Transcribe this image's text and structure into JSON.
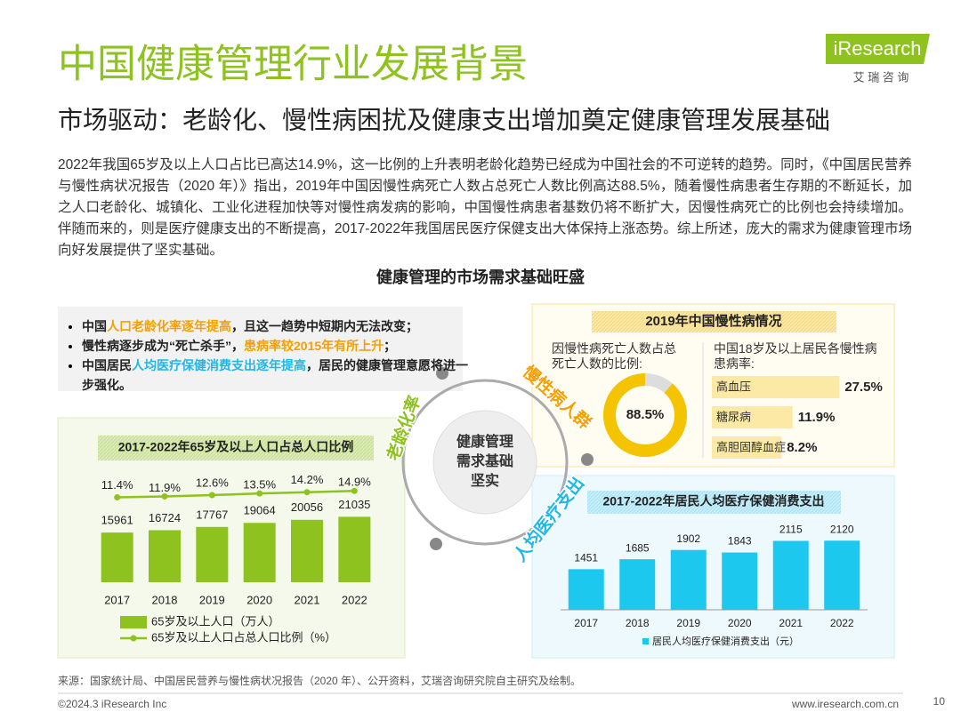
{
  "header": {
    "title": "中国健康管理行业发展背景",
    "subtitle": "市场驱动：老龄化、慢性病困扰及健康支出增加奠定健康管理发展基础",
    "logo": "iResearch",
    "logo_sub": "艾 瑞 咨 询"
  },
  "intro": "2022年我国65岁及以上人口占比已高达14.9%，这一比例的上升表明老龄化趋势已经成为中国社会的不可逆转的趋势。同时，《中国居民营养与慢性病状况报告（2020 年）》指出，2019年中国因慢性病死亡人数占总死亡人数比例高达88.5%，随着慢性病患者生存期的不断延长，加之人口老龄化、城镇化、工业化进程加快等对慢性病发病的影响，中国慢性病患者基数仍将不断扩大，因慢性病死亡的比例也会持续增加。伴随而来的，则是医疗健康支出的不断提高，2017-2022年我国居民医疗保健支出大体保持上涨态势。综上所述，庞大的需求为健康管理市场向好发展提供了坚实基础。",
  "section_title": "健康管理的市场需求基础旺盛",
  "bullets": [
    [
      {
        "text": "中国",
        "color": "#222222"
      },
      {
        "text": "人口老龄化率逐年提高",
        "color": "#f5a000"
      },
      {
        "text": "，且这一趋势中短期内无法改变；",
        "color": "#222222"
      }
    ],
    [
      {
        "text": "慢性病逐步成为“死亡杀手”，",
        "color": "#222222"
      },
      {
        "text": "患病率较2015年有所上升",
        "color": "#f5a000"
      },
      {
        "text": "；",
        "color": "#222222"
      }
    ],
    [
      {
        "text": "中国居民",
        "color": "#222222"
      },
      {
        "text": "人均医疗保健消费支出逐年提高",
        "color": "#1db8ea"
      },
      {
        "text": "，居民的健康管理意愿将进一步强化。",
        "color": "#222222"
      }
    ]
  ],
  "center": {
    "lines": [
      "健康管理",
      "需求基础",
      "坚实"
    ],
    "ring_labels": [
      {
        "text": "老龄化率",
        "color": "#8dc21f"
      },
      {
        "text": "慢性病人群",
        "color": "#f5a000"
      },
      {
        "text": "人均医疗支出",
        "color": "#1db8ea"
      }
    ]
  },
  "chronic_panel_title": "2019年中国慢性病情况",
  "chart_data": [
    {
      "type": "bar_line",
      "title": "2017-2022年65岁及以上人口占总人口比例",
      "categories": [
        "2017",
        "2018",
        "2019",
        "2020",
        "2021",
        "2022"
      ],
      "series": [
        {
          "name": "65岁及以上人口（万人）",
          "color": "#8dc21f",
          "values": [
            15961,
            16724,
            17767,
            19064,
            20056,
            21035
          ]
        },
        {
          "name": "65岁及以上人口占总人口比例（%）",
          "color": "#8dc21f",
          "axis": "y2",
          "values": [
            11.4,
            11.9,
            12.6,
            13.5,
            14.2,
            14.9
          ],
          "value_labels": [
            "11.4%",
            "11.9%",
            "12.6%",
            "13.5%",
            "14.2%",
            "14.9%"
          ]
        }
      ],
      "ylim": [
        0,
        30000
      ],
      "y2lim": [
        -35,
        16
      ]
    },
    {
      "type": "donut",
      "title": "因慢性病死亡人数占总死亡人数的比例:",
      "values": [
        88.5
      ],
      "value_labels": [
        "88.5%"
      ],
      "color": "#f5c400",
      "rest_color": "#dddddd"
    },
    {
      "type": "hbar",
      "title": "中国18岁及以上居民各慢性病患病率:",
      "categories": [
        "高血压",
        "糖尿病",
        "高胆固醇血症"
      ],
      "values": [
        27.5,
        11.9,
        8.2
      ],
      "value_labels": [
        "27.5%",
        "11.9%",
        "8.2%"
      ],
      "color": "#fce9a6",
      "xlim": [
        -15,
        28
      ]
    },
    {
      "type": "bar",
      "title": "2017-2022年居民人均医疗保健消费支出",
      "categories": [
        "2017",
        "2018",
        "2019",
        "2020",
        "2021",
        "2022"
      ],
      "series": [
        {
          "name": "居民人均医疗保健消费支出（元）",
          "color": "#1dc8ef",
          "values": [
            1451,
            1685,
            1902,
            1843,
            2115,
            2120
          ]
        }
      ],
      "ylim": [
        500,
        2500
      ]
    }
  ],
  "source": "来源：国家统计局、中国居民营养与慢性病状况报告（2020 年）、公开资料，艾瑞咨询研究院自主研究及绘制。",
  "footer": {
    "copyright": "©2024.3 iResearch Inc",
    "url": "www.iresearch.com.cn",
    "page": "10"
  }
}
